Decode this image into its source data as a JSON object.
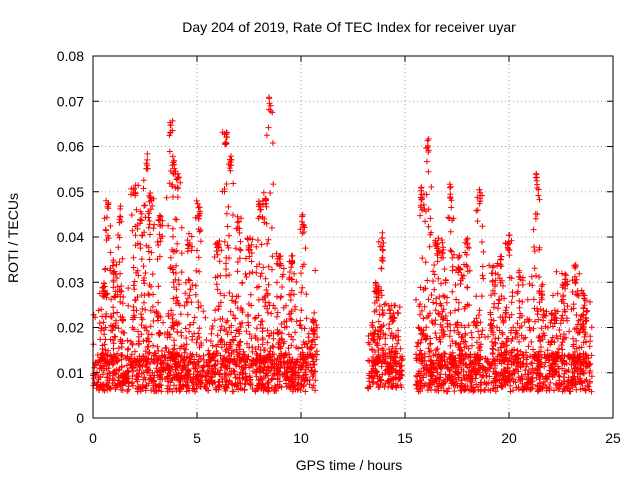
{
  "chart_data": {
    "type": "scatter",
    "title": "Day 204 of 2019, Rate Of TEC Index for receiver uyar",
    "xlabel": "GPS time / hours",
    "ylabel": "ROTI / TECUs",
    "xlim": [
      0,
      25
    ],
    "ylim": [
      0,
      0.08
    ],
    "x_ticks": [
      0,
      5,
      10,
      15,
      20,
      25
    ],
    "y_ticks": [
      0,
      0.01,
      0.02,
      0.03,
      0.04,
      0.05,
      0.06,
      0.07,
      0.08
    ],
    "x_tick_labels": [
      "0",
      "5",
      "10",
      "15",
      "20",
      "25"
    ],
    "y_tick_labels": [
      "0",
      "0.01",
      "0.02",
      "0.03",
      "0.04",
      "0.05",
      "0.06",
      "0.07",
      "0.08"
    ],
    "grid": true,
    "marker": "+",
    "color": "#ff0000",
    "series": [
      {
        "name": "ROTI",
        "segments": [
          {
            "x_start": 0.0,
            "x_end": 10.7,
            "baseline": 0.01,
            "spread": 0.006
          },
          {
            "x_start": 13.2,
            "x_end": 14.9,
            "baseline": 0.01,
            "spread": 0.005
          },
          {
            "x_start": 15.5,
            "x_end": 24.0,
            "baseline": 0.01,
            "spread": 0.006
          }
        ],
        "peaks": [
          {
            "x": 0.5,
            "y": 0.03
          },
          {
            "x": 0.7,
            "y": 0.048
          },
          {
            "x": 1.0,
            "y": 0.035
          },
          {
            "x": 1.3,
            "y": 0.047
          },
          {
            "x": 2.0,
            "y": 0.052
          },
          {
            "x": 2.3,
            "y": 0.046
          },
          {
            "x": 2.6,
            "y": 0.059
          },
          {
            "x": 2.8,
            "y": 0.05
          },
          {
            "x": 3.2,
            "y": 0.045
          },
          {
            "x": 3.7,
            "y": 0.066
          },
          {
            "x": 3.9,
            "y": 0.057
          },
          {
            "x": 4.1,
            "y": 0.054
          },
          {
            "x": 4.6,
            "y": 0.041
          },
          {
            "x": 5.1,
            "y": 0.048
          },
          {
            "x": 6.0,
            "y": 0.04
          },
          {
            "x": 6.4,
            "y": 0.064
          },
          {
            "x": 6.6,
            "y": 0.058
          },
          {
            "x": 7.0,
            "y": 0.045
          },
          {
            "x": 7.5,
            "y": 0.04
          },
          {
            "x": 8.0,
            "y": 0.048
          },
          {
            "x": 8.3,
            "y": 0.05
          },
          {
            "x": 8.5,
            "y": 0.071
          },
          {
            "x": 9.0,
            "y": 0.037
          },
          {
            "x": 9.6,
            "y": 0.037
          },
          {
            "x": 10.1,
            "y": 0.045
          },
          {
            "x": 10.6,
            "y": 0.022
          },
          {
            "x": 13.6,
            "y": 0.03
          },
          {
            "x": 13.9,
            "y": 0.041
          },
          {
            "x": 14.4,
            "y": 0.025
          },
          {
            "x": 15.8,
            "y": 0.051
          },
          {
            "x": 16.1,
            "y": 0.062
          },
          {
            "x": 16.5,
            "y": 0.04
          },
          {
            "x": 16.8,
            "y": 0.04
          },
          {
            "x": 17.2,
            "y": 0.052
          },
          {
            "x": 17.6,
            "y": 0.036
          },
          {
            "x": 18.0,
            "y": 0.04
          },
          {
            "x": 18.6,
            "y": 0.051
          },
          {
            "x": 19.2,
            "y": 0.034
          },
          {
            "x": 19.6,
            "y": 0.036
          },
          {
            "x": 20.0,
            "y": 0.041
          },
          {
            "x": 20.5,
            "y": 0.033
          },
          {
            "x": 21.3,
            "y": 0.055
          },
          {
            "x": 21.6,
            "y": 0.03
          },
          {
            "x": 22.2,
            "y": 0.025
          },
          {
            "x": 22.7,
            "y": 0.033
          },
          {
            "x": 23.2,
            "y": 0.034
          },
          {
            "x": 23.6,
            "y": 0.028
          }
        ]
      }
    ]
  }
}
